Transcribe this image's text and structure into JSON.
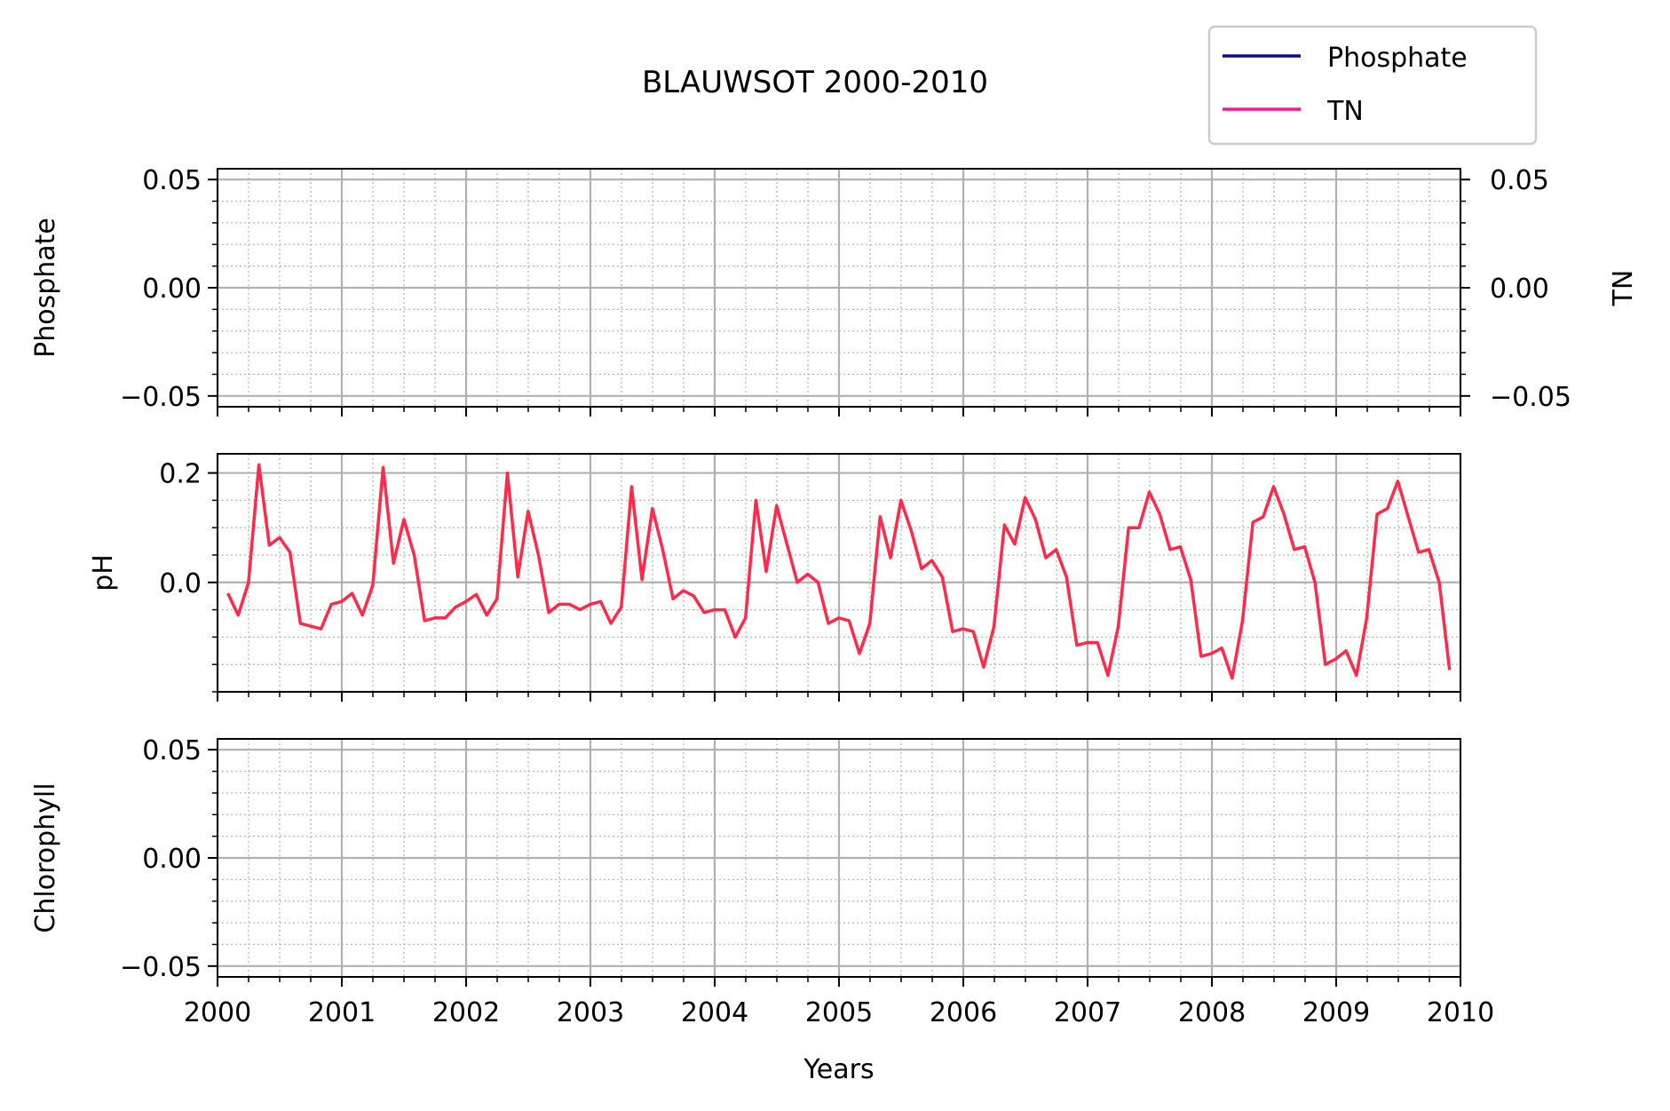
{
  "chart_data": {
    "type": "line",
    "title": "BLAUWSOT 2000-2010",
    "xlabel": "Years",
    "xlim": [
      2000,
      2010
    ],
    "x_ticks": [
      "2000",
      "2001",
      "2002",
      "2003",
      "2004",
      "2005",
      "2006",
      "2007",
      "2008",
      "2009",
      "2010"
    ],
    "grid": true,
    "legend": {
      "placement": "top-right",
      "entries": [
        {
          "name": "Phosphate",
          "color": "#0a0a9a"
        },
        {
          "name": "TN",
          "color": "#ff1493"
        }
      ]
    },
    "panels": [
      {
        "ylabel": "Phosphate",
        "ylim": [
          -0.055,
          0.055
        ],
        "y_ticks": [
          "0.05",
          "0.00",
          "−0.05"
        ],
        "y_tick_values": [
          0.05,
          0,
          -0.05
        ],
        "right_ylabel": "TN",
        "right_y_ticks": [
          "0.05",
          "0.00",
          "−0.05"
        ],
        "series": []
      },
      {
        "ylabel": "pH",
        "ylim": [
          -0.2,
          0.235
        ],
        "y_ticks": [
          "0.2",
          "0.0"
        ],
        "y_tick_values": [
          0.2,
          0.0
        ],
        "series": [
          {
            "color": "#ff2a4a",
            "x_start": 2000.083,
            "x_step": 0.0833,
            "values": [
              -0.02,
              -0.06,
              0.0,
              0.215,
              0.068,
              0.082,
              0.055,
              -0.075,
              -0.08,
              -0.085,
              -0.04,
              -0.035,
              -0.02,
              -0.06,
              -0.005,
              0.21,
              0.035,
              0.115,
              0.05,
              -0.07,
              -0.065,
              -0.065,
              -0.045,
              -0.035,
              -0.022,
              -0.06,
              -0.03,
              0.2,
              0.01,
              0.13,
              0.05,
              -0.055,
              -0.04,
              -0.04,
              -0.05,
              -0.04,
              -0.035,
              -0.075,
              -0.045,
              0.175,
              0.005,
              0.135,
              0.06,
              -0.03,
              -0.015,
              -0.025,
              -0.055,
              -0.05,
              -0.05,
              -0.1,
              -0.065,
              0.15,
              0.02,
              0.14,
              0.07,
              0.0,
              0.015,
              0.0,
              -0.075,
              -0.065,
              -0.07,
              -0.13,
              -0.075,
              0.12,
              0.045,
              0.15,
              0.095,
              0.025,
              0.04,
              0.01,
              -0.09,
              -0.085,
              -0.09,
              -0.155,
              -0.08,
              0.105,
              0.07,
              0.155,
              0.115,
              0.045,
              0.06,
              0.01,
              -0.115,
              -0.11,
              -0.11,
              -0.17,
              -0.08,
              0.1,
              0.1,
              0.165,
              0.125,
              0.06,
              0.065,
              0.005,
              -0.135,
              -0.13,
              -0.12,
              -0.175,
              -0.07,
              0.11,
              0.12,
              0.175,
              0.125,
              0.06,
              0.065,
              0.0,
              -0.15,
              -0.14,
              -0.125,
              -0.17,
              -0.065,
              0.125,
              0.135,
              0.185,
              0.12,
              0.055,
              0.06,
              0.0,
              -0.16
            ]
          }
        ]
      },
      {
        "ylabel": "Chlorophyll",
        "ylim": [
          -0.055,
          0.055
        ],
        "y_ticks": [
          "0.05",
          "0.00",
          "−0.05"
        ],
        "y_tick_values": [
          0.05,
          0,
          -0.05
        ],
        "series": []
      }
    ]
  }
}
